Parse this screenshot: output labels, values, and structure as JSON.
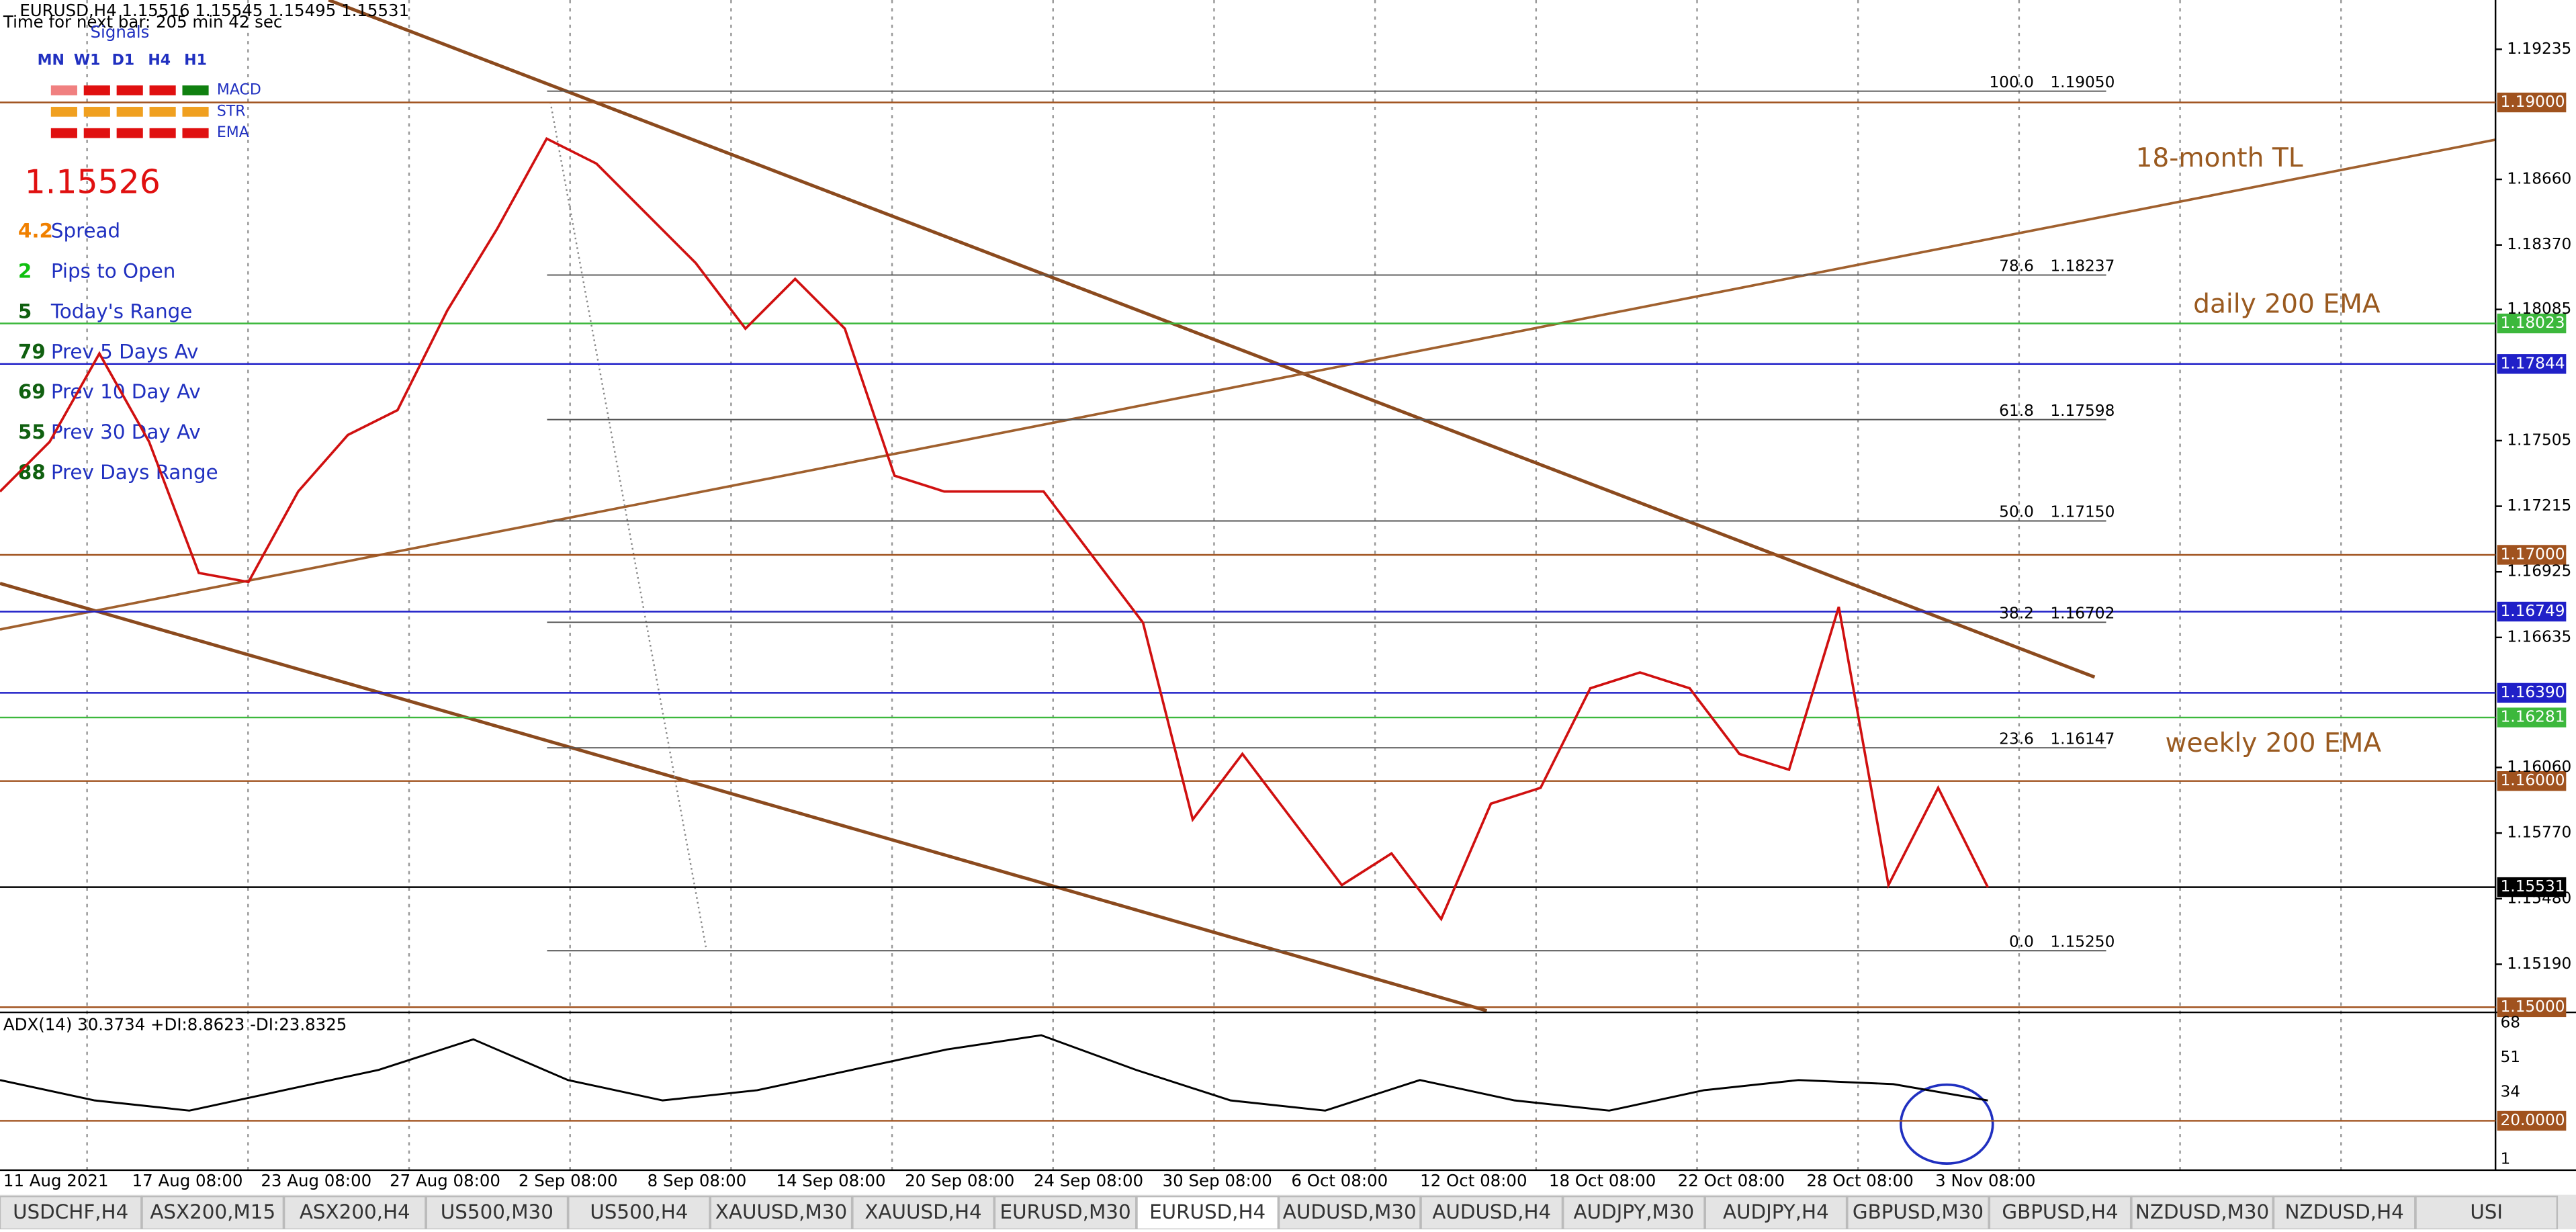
{
  "header": {
    "symbol_line": "EURUSD,H4  1.15516 1.15545 1.15495 1.15531",
    "timer": "Time for next bar: 205 min 42 sec"
  },
  "signals": {
    "title": "Signals",
    "timeframes": [
      "MN",
      "W1",
      "D1",
      "H4",
      "H1"
    ],
    "rows": [
      "MACD",
      "STR",
      "EMA"
    ]
  },
  "bid": "1.15526",
  "stats": [
    {
      "value": "4.2",
      "label": "Spread"
    },
    {
      "value": "2",
      "label": "Pips to Open"
    },
    {
      "value": "5",
      "label": "Today's Range"
    },
    {
      "value": "79",
      "label": "Prev 5 Days Av"
    },
    {
      "value": "69",
      "label": "Prev 10 Day Av"
    },
    {
      "value": "55",
      "label": "Prev 30 Day Av"
    },
    {
      "value": "88",
      "label": "Prev Days Range"
    }
  ],
  "chart": {
    "ylim": [
      1.1497,
      1.19453
    ],
    "yticks": [
      1.19235,
      {
        "value": 1.1866,
        "label": "1.18660"
      },
      {
        "value": 1.1837,
        "label": "1.18370"
      },
      1.18085,
      1.17505,
      1.17215,
      1.16925,
      1.16635,
      {
        "value": 1.1606,
        "label": "1.16060"
      },
      {
        "value": 1.1577,
        "label": "1.15770"
      },
      {
        "value": 1.1548,
        "label": "1.15480"
      },
      {
        "value": 1.1519,
        "label": "1.15190"
      }
    ],
    "levels": [
      {
        "value": 1.19,
        "label": "1.19000",
        "color": "#a0521e"
      },
      {
        "value": 1.18023,
        "label": "1.18023",
        "color": "#3cb83c"
      },
      {
        "value": 1.17844,
        "label": "1.17844",
        "color": "#2020c8"
      },
      {
        "value": 1.17,
        "label": "1.17000",
        "color": "#a0521e"
      },
      {
        "value": 1.16749,
        "label": "1.16749",
        "color": "#2020c8"
      },
      {
        "value": 1.1639,
        "label": "1.16390",
        "color": "#2020c8"
      },
      {
        "value": 1.16281,
        "label": "1.16281",
        "color": "#3cb83c"
      },
      {
        "value": 1.16,
        "label": "1.16000",
        "color": "#a0521e"
      },
      {
        "value": 1.15531,
        "label": "1.15531",
        "color": "#000000"
      },
      {
        "value": 1.15,
        "label": "1.15000",
        "color": "#a0521e"
      }
    ],
    "fib": [
      {
        "ratio": {
          "value": 100,
          "label": "100.0"
        },
        "price": {
          "value": 1.1905,
          "label": "1.19050"
        }
      },
      {
        "ratio": 78.6,
        "price": 1.18237
      },
      {
        "ratio": 61.8,
        "price": 1.17598
      },
      {
        "ratio": {
          "value": 50,
          "label": "50.0"
        },
        "price": {
          "value": 1.1715,
          "label": "1.17150"
        }
      },
      {
        "ratio": 38.2,
        "price": 1.16702
      },
      {
        "ratio": 23.6,
        "price": 1.16147
      },
      {
        "ratio": {
          "value": 0,
          "label": "0.0"
        },
        "price": {
          "value": 1.1525,
          "label": "1.15250"
        }
      }
    ],
    "annotations": [
      "18-month TL",
      "daily 200 EMA",
      "weekly 200 EMA"
    ],
    "price": {
      "color": "#d01010",
      "values": [
        1.1728,
        1.175,
        1.1789,
        1.175,
        1.1692,
        1.1688,
        1.1728,
        1.1753,
        1.1764,
        1.1808,
        1.1844,
        1.1884,
        1.1873,
        1.1851,
        1.1829,
        1.18,
        1.1822,
        1.18,
        1.1735,
        1.1728,
        1.1728,
        1.1728,
        1.1699,
        1.167,
        1.1583,
        1.1612,
        1.1583,
        1.1554,
        1.1568,
        1.1539,
        1.159,
        1.1597,
        1.1641,
        1.1648,
        1.1641,
        1.1612,
        1.1605,
        1.1677,
        1.1554,
        1.1597,
        1.1553
      ]
    },
    "time_labels": [
      "11 Aug 2021",
      "17 Aug 08:00",
      "23 Aug 08:00",
      "27 Aug 08:00",
      "2 Sep 08:00",
      "8 Sep 08:00",
      "14 Sep 08:00",
      "20 Sep 08:00",
      "24 Sep 08:00",
      "30 Sep 08:00",
      "6 Oct 08:00",
      "12 Oct 08:00",
      "18 Oct 08:00",
      "22 Oct 08:00",
      "28 Oct 08:00",
      "3 Nov 08:00"
    ]
  },
  "adx": {
    "label": "ADX(14) 30.3734 +DI:8.8623 -DI:23.8325",
    "ylim": [
      -1,
      70
    ],
    "yticks": [
      68,
      51,
      34,
      {
        "value": 20,
        "label": "20.0000"
      },
      1
    ],
    "values": [
      40,
      30,
      25,
      35,
      45,
      60,
      40,
      30,
      35,
      45,
      55,
      62,
      45,
      30,
      25,
      40,
      30,
      25,
      35,
      40,
      38,
      30
    ]
  },
  "tabs": [
    "USDCHF,H4",
    "ASX200,M15",
    "ASX200,H4",
    "US500,M30",
    "US500,H4",
    "XAUUSD,M30",
    "XAUUSD,H4",
    "EURUSD,M30",
    "EURUSD,H4",
    "AUDUSD,M30",
    "AUDUSD,H4",
    "AUDJPY,M30",
    "AUDJPY,H4",
    "GBPUSD,M30",
    "GBPUSD,H4",
    "NZDUSD,M30",
    "NZDUSD,H4",
    "USI"
  ],
  "active_tab": "EURUSD,H4"
}
